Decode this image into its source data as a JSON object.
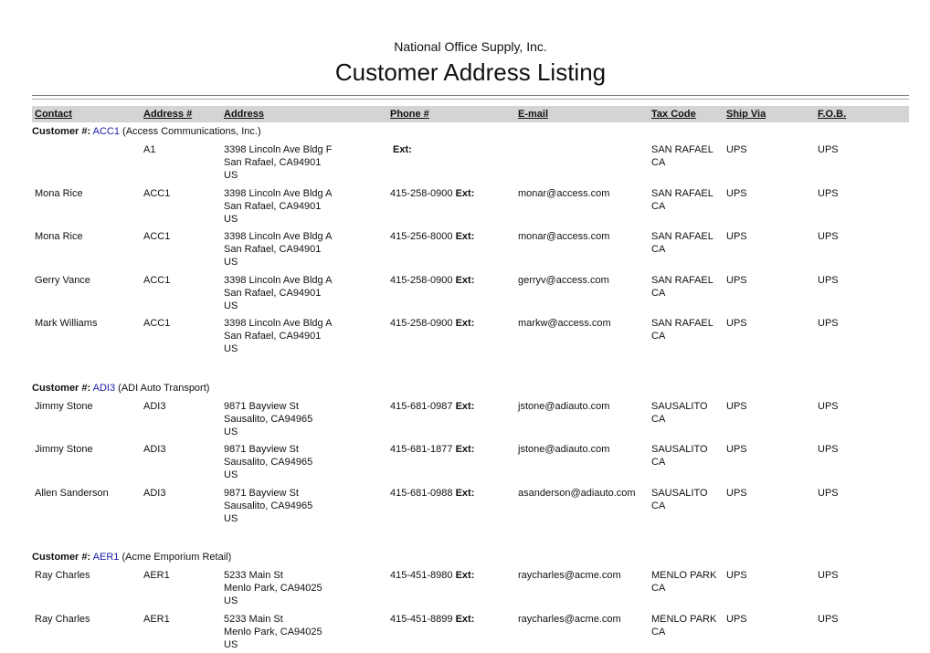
{
  "report": {
    "company": "National Office Supply, Inc.",
    "title": "Customer Address Listing"
  },
  "columns": [
    "Contact",
    "Address #",
    "Address",
    "Phone #",
    "E-mail",
    "Tax Code",
    "Ship Via",
    "F.O.B."
  ],
  "labels": {
    "customer": "Customer #:",
    "ext": "Ext:"
  },
  "groups": [
    {
      "id": "ACC1",
      "name": "(Access Communications, Inc.)",
      "rows": [
        {
          "contact": "",
          "addr_no": "A1",
          "addr": [
            "3398 Lincoln Ave Bldg F",
            "San Rafael, CA94901",
            "US"
          ],
          "phone": "",
          "email": "",
          "tax": "SAN RAFAEL CA",
          "ship": "UPS",
          "fob": "UPS"
        },
        {
          "contact": "Mona Rice",
          "addr_no": "ACC1",
          "addr": [
            "3398 Lincoln Ave Bldg A",
            "San Rafael, CA94901",
            "US"
          ],
          "phone": "415-258-0900",
          "email": "monar@access.com",
          "tax": "SAN RAFAEL CA",
          "ship": "UPS",
          "fob": "UPS"
        },
        {
          "contact": "Mona Rice",
          "addr_no": "ACC1",
          "addr": [
            "3398 Lincoln Ave Bldg A",
            "San Rafael, CA94901",
            "US"
          ],
          "phone": "415-256-8000",
          "email": "monar@access.com",
          "tax": "SAN RAFAEL CA",
          "ship": "UPS",
          "fob": "UPS"
        },
        {
          "contact": "Gerry Vance",
          "addr_no": "ACC1",
          "addr": [
            "3398 Lincoln Ave Bldg A",
            "San Rafael, CA94901",
            "US"
          ],
          "phone": "415-258-0900",
          "email": "gerryv@access.com",
          "tax": "SAN RAFAEL CA",
          "ship": "UPS",
          "fob": "UPS"
        },
        {
          "contact": "Mark Williams",
          "addr_no": "ACC1",
          "addr": [
            "3398 Lincoln Ave Bldg A",
            "San Rafael, CA94901",
            "US"
          ],
          "phone": "415-258-0900",
          "email": "markw@access.com",
          "tax": "SAN RAFAEL CA",
          "ship": "UPS",
          "fob": "UPS"
        }
      ]
    },
    {
      "id": "ADI3",
      "name": "(ADI Auto Transport)",
      "rows": [
        {
          "contact": "Jimmy Stone",
          "addr_no": "ADI3",
          "addr": [
            "9871 Bayview St",
            "Sausalito, CA94965",
            "US"
          ],
          "phone": "415-681-0987",
          "email": "jstone@adiauto.com",
          "tax": "SAUSALITO CA",
          "ship": "UPS",
          "fob": "UPS"
        },
        {
          "contact": "Jimmy Stone",
          "addr_no": "ADI3",
          "addr": [
            "9871 Bayview St",
            "Sausalito, CA94965",
            "US"
          ],
          "phone": "415-681-1877",
          "email": "jstone@adiauto.com",
          "tax": "SAUSALITO CA",
          "ship": "UPS",
          "fob": "UPS"
        },
        {
          "contact": "Allen Sanderson",
          "addr_no": "ADI3",
          "addr": [
            "9871 Bayview St",
            "Sausalito, CA94965",
            "US"
          ],
          "phone": "415-681-0988",
          "email": "asanderson@adiauto.com",
          "tax": "SAUSALITO CA",
          "ship": "UPS",
          "fob": "UPS"
        }
      ]
    },
    {
      "id": "AER1",
      "name": "(Acme Emporium Retail)",
      "rows": [
        {
          "contact": "Ray Charles",
          "addr_no": "AER1",
          "addr": [
            "5233 Main St",
            "Menlo Park, CA94025",
            "US"
          ],
          "phone": "415-451-8980",
          "email": "raycharles@acme.com",
          "tax": "MENLO PARK CA",
          "ship": "UPS",
          "fob": "UPS"
        },
        {
          "contact": "Ray Charles",
          "addr_no": "AER1",
          "addr": [
            "5233 Main St",
            "Menlo Park, CA94025",
            "US"
          ],
          "phone": "415-451-8899",
          "email": "raycharles@acme.com",
          "tax": "MENLO PARK CA",
          "ship": "UPS",
          "fob": "UPS"
        }
      ]
    }
  ]
}
